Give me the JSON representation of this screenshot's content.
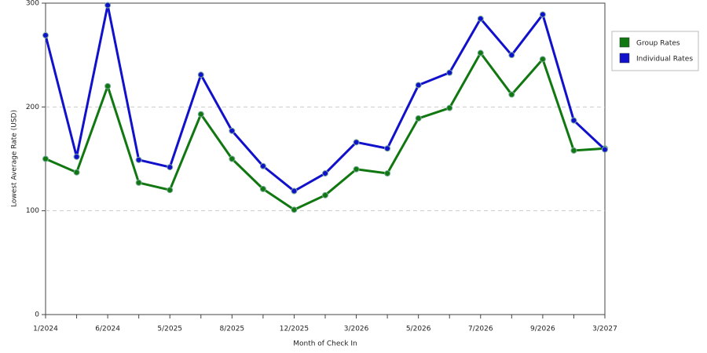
{
  "chart_data": {
    "type": "line",
    "x_label": "Month of Check In",
    "y_label": "Lowest Average Rate (USD)",
    "categories": [
      "1/2024",
      null,
      "6/2024",
      null,
      "5/2025",
      null,
      "8/2025",
      null,
      "12/2025",
      null,
      "3/2026",
      null,
      "5/2026",
      null,
      "7/2026",
      null,
      "9/2026",
      null,
      "3/2027"
    ],
    "series": [
      {
        "name": "Group Rates",
        "color": "#117711",
        "values": [
          150,
          137,
          220,
          127,
          120,
          193,
          150,
          121,
          101,
          115,
          140,
          136,
          189,
          199,
          252,
          212,
          246,
          158,
          160
        ]
      },
      {
        "name": "Individual Rates",
        "color": "#1111cc",
        "values": [
          269,
          152,
          298,
          149,
          142,
          231,
          177,
          143,
          119,
          136,
          166,
          160,
          221,
          233,
          285,
          250,
          289,
          187,
          159
        ]
      }
    ],
    "ylim": [
      0,
      300
    ],
    "yticks": [
      0,
      100,
      200,
      300
    ],
    "grid": true,
    "legend": "right"
  }
}
